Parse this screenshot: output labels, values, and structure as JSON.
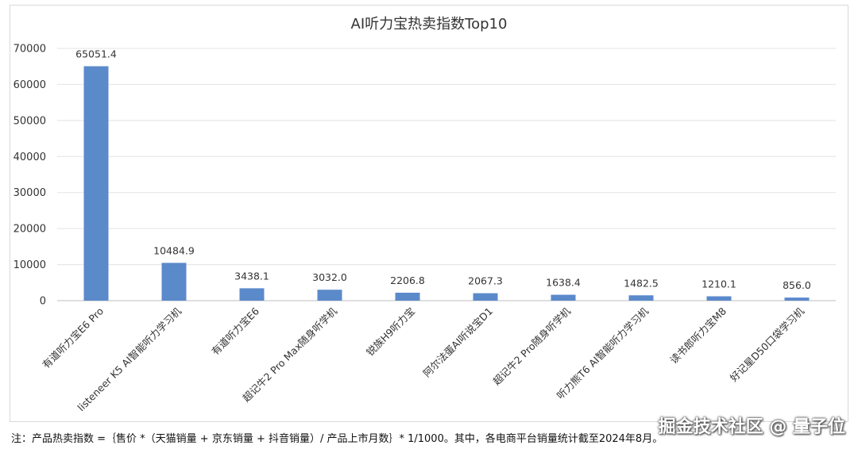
{
  "chart_data": {
    "type": "bar",
    "title": "AI听力宝热卖指数Top10",
    "categories": [
      "有道听力宝E6 Pro",
      "listeneer K5 AI智能听力学习机",
      "有道听力宝E6",
      "超记牛2 Pro Max随身听学机",
      "锐族H9听力宝",
      "阿尔法蛋AI听说宝D1",
      "超记牛2 Pro随身听学机",
      "听力熊T6 AI智能听力学习机",
      "读书郎听力宝M8",
      "好记星D50口袋学习机"
    ],
    "values": [
      65051.4,
      10484.9,
      3438.1,
      3032.0,
      2206.8,
      2067.3,
      1638.4,
      1482.5,
      1210.1,
      856.0
    ],
    "data_labels": [
      "65051.4",
      "10484.9",
      "3438.1",
      "3032.0",
      "2206.8",
      "2067.3",
      "1638.4",
      "1482.5",
      "1210.1",
      "856.0"
    ],
    "yticks": [
      "0",
      "10000",
      "20000",
      "30000",
      "40000",
      "50000",
      "60000",
      "70000"
    ],
    "ylim": [
      0,
      70000
    ],
    "grid": true,
    "legend": "none",
    "bar_color": "#5b8acb"
  },
  "footnote": "注：产品热卖指数 =｛售价 *（天猫销量 + 京东销量 + 抖音销量）/ 产品上市月数｝* 1/1000。其中，各电商平台销量统计截至2024年8月。",
  "watermark": "掘金技术社区 @ 量子位"
}
